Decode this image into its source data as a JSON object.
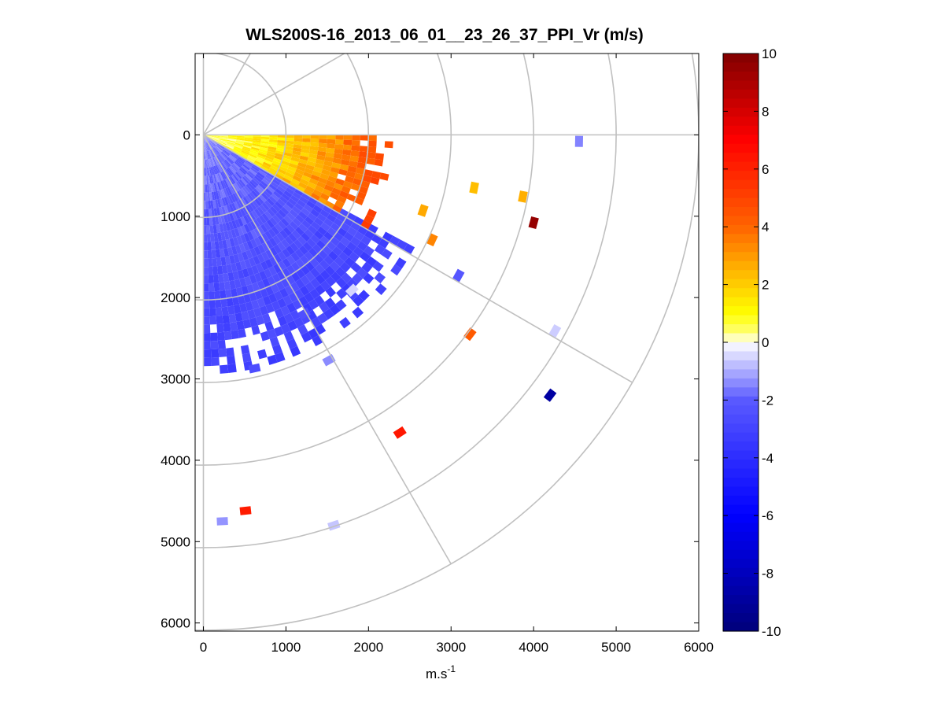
{
  "chart_data": {
    "type": "heatmap",
    "subtype": "polar-ppi-scan",
    "title": "WLS200S-16_2013_06_01__23_26_37_PPI_Vr (m/s)",
    "xlabel_base": "m.s",
    "xlabel_sup": "-1",
    "ylabel": "",
    "xlim": [
      -100,
      6000
    ],
    "ylim": [
      6100,
      -1000
    ],
    "x_ticks": [
      0,
      1000,
      2000,
      3000,
      4000,
      5000,
      6000
    ],
    "x_tick_labels": [
      "0",
      "1000",
      "2000",
      "3000",
      "4000",
      "5000",
      "6000"
    ],
    "y_ticks": [
      0,
      1000,
      2000,
      3000,
      4000,
      5000,
      6000
    ],
    "y_tick_labels": [
      "0",
      "1000",
      "2000",
      "3000",
      "4000",
      "5000",
      "6000"
    ],
    "polar_grid": {
      "range_rings": [
        1000,
        2000,
        3000,
        4000,
        5000,
        6000
      ],
      "spokes_deg_below_horizontal": [
        0,
        30,
        60,
        90
      ],
      "spoke_length": 6000
    },
    "colorbar": {
      "vmin": -10,
      "vmax": 10,
      "ticks": [
        10,
        8,
        6,
        4,
        2,
        0,
        -2,
        -4,
        -6,
        -8,
        -10
      ],
      "tick_labels": [
        "10",
        "8",
        "6",
        "4",
        "2",
        "0",
        "-2",
        "-4",
        "-6",
        "-8",
        "-10"
      ],
      "colormap": [
        {
          "v": -10,
          "color": "#00007a"
        },
        {
          "v": -6,
          "color": "#0000ff"
        },
        {
          "v": -2,
          "color": "#5a5aff"
        },
        {
          "v": -0.3,
          "color": "#e6e6ff"
        },
        {
          "v": 0,
          "color": "#ffffff"
        },
        {
          "v": 0.3,
          "color": "#ffff7a"
        },
        {
          "v": 1,
          "color": "#ffff00"
        },
        {
          "v": 2.5,
          "color": "#ffb400"
        },
        {
          "v": 4,
          "color": "#ff6400"
        },
        {
          "v": 7,
          "color": "#ff0000"
        },
        {
          "v": 10,
          "color": "#800000"
        }
      ]
    },
    "sectors": [
      {
        "name": "near-field-negative",
        "bearing_min_deg": 28,
        "bearing_max_deg": 90,
        "range_min": 0,
        "range_max": 2900,
        "value_min": -3.2,
        "value_max": -1.0
      },
      {
        "name": "near-field-positive",
        "bearing_min_deg": 0,
        "bearing_max_deg": 30,
        "range_min": 0,
        "range_max": 2300,
        "value_min": 0.3,
        "value_max": 5.2
      }
    ],
    "scatter_cells": [
      {
        "x": 4550,
        "y": 80,
        "v": -1.5
      },
      {
        "x": 3280,
        "y": 650,
        "v": 2.3
      },
      {
        "x": 3870,
        "y": 760,
        "v": 2.6
      },
      {
        "x": 2660,
        "y": 930,
        "v": 2.7
      },
      {
        "x": 4000,
        "y": 1080,
        "v": 9.5
      },
      {
        "x": 2770,
        "y": 1290,
        "v": 3.4
      },
      {
        "x": 3090,
        "y": 1730,
        "v": -2.2
      },
      {
        "x": 3230,
        "y": 2450,
        "v": 4.3
      },
      {
        "x": 4260,
        "y": 2410,
        "v": -0.6
      },
      {
        "x": 4200,
        "y": 3200,
        "v": -8.8
      },
      {
        "x": 2380,
        "y": 3660,
        "v": 6.3
      },
      {
        "x": 1220,
        "y": 2200,
        "v": -2.5
      },
      {
        "x": 1520,
        "y": 2770,
        "v": -1.4
      },
      {
        "x": 1580,
        "y": 4800,
        "v": -0.7
      },
      {
        "x": 510,
        "y": 4620,
        "v": 6.2
      },
      {
        "x": 230,
        "y": 4750,
        "v": -1.3
      },
      {
        "x": 620,
        "y": 2870,
        "v": -2.6
      },
      {
        "x": 1800,
        "y": 1910,
        "v": -0.5
      }
    ]
  }
}
